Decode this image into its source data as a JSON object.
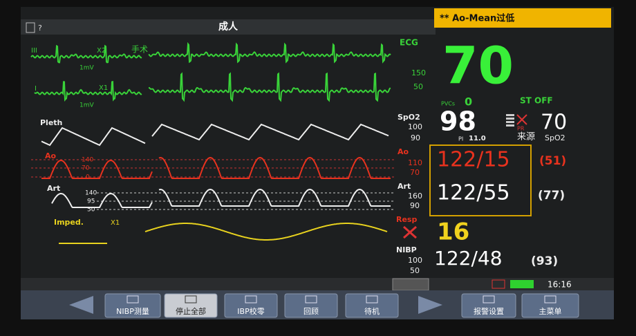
{
  "header": {
    "help": "?",
    "mode": "成人",
    "alarm": "** Ao-Mean过低"
  },
  "ecg": {
    "lead1": "III",
    "gain1": "X2",
    "label1": "手术",
    "scale1": "1mV",
    "lead2": "I",
    "gain2": "X1",
    "scale2": "1mV",
    "name": "ECG",
    "upper": "150",
    "lower": "50",
    "hr": "70",
    "pvcs_label": "PVCs",
    "pvcs": "0",
    "st": "ST OFF"
  },
  "spo2": {
    "wave": "Pleth",
    "name": "SpO2",
    "upper": "100",
    "lower": "90",
    "value": "98",
    "pi_label": "PI",
    "pi": "11.0",
    "pr_label": "PR",
    "source": "来源",
    "pr": "70",
    "pr_source": "SpO2"
  },
  "ao": {
    "wave": "Ao",
    "scale": [
      "140",
      "70",
      "0"
    ],
    "name": "Ao",
    "upper": "110",
    "lower": "70",
    "value": "122/15",
    "mean": "(51)"
  },
  "art": {
    "wave": "Art",
    "scale": [
      "140",
      "95",
      "50"
    ],
    "name": "Art",
    "upper": "160",
    "lower": "90",
    "value": "122/55",
    "mean": "(77)"
  },
  "resp": {
    "wave": "Imped.",
    "gain": "X1",
    "name": "Resp",
    "value": "16"
  },
  "nibp": {
    "name": "NIBP",
    "upper": "100",
    "lower": "50",
    "value": "122/48",
    "mean": "(93)"
  },
  "status": {
    "time": "16:16"
  },
  "buttons": [
    "NIBP测量",
    "停止全部",
    "IBP校零",
    "回顾",
    "待机",
    "报警设置",
    "主菜单"
  ]
}
